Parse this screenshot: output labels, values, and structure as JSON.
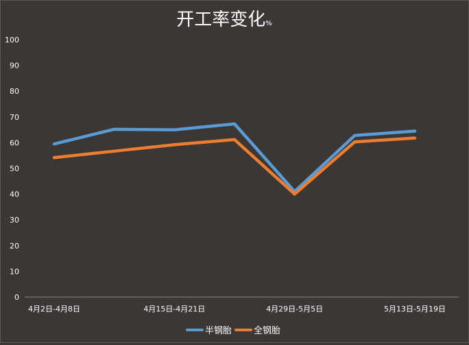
{
  "chart_data": {
    "type": "line",
    "title": "开工率变化",
    "title_unit": "%",
    "x": [
      "4月2日-4月8日",
      "",
      "4月15日-4月21日",
      "",
      "4月29日-5月5日",
      "",
      "5月13日-5月19日"
    ],
    "series": [
      {
        "name": "半钢胎",
        "color": "#5b9bd5",
        "values": [
          59.5,
          65.2,
          65.0,
          67.3,
          41.0,
          62.8,
          64.5
        ]
      },
      {
        "name": "全钢胎",
        "color": "#ed7d31",
        "values": [
          54.2,
          56.7,
          59.2,
          61.2,
          40.0,
          60.3,
          61.8
        ]
      }
    ],
    "ylim": [
      0,
      100
    ],
    "yticks": [
      "0",
      "10",
      "20",
      "30",
      "40",
      "50",
      "60",
      "70",
      "80",
      "90",
      "100"
    ],
    "xtick_labels": [
      "4月2日-4月8日",
      "4月15日-4月21日",
      "4月29日-5月5日",
      "5月13日-5月19日"
    ],
    "grid": false,
    "legend": "bottom-center",
    "background": "#3a3735",
    "text_color": "#ffffff"
  }
}
